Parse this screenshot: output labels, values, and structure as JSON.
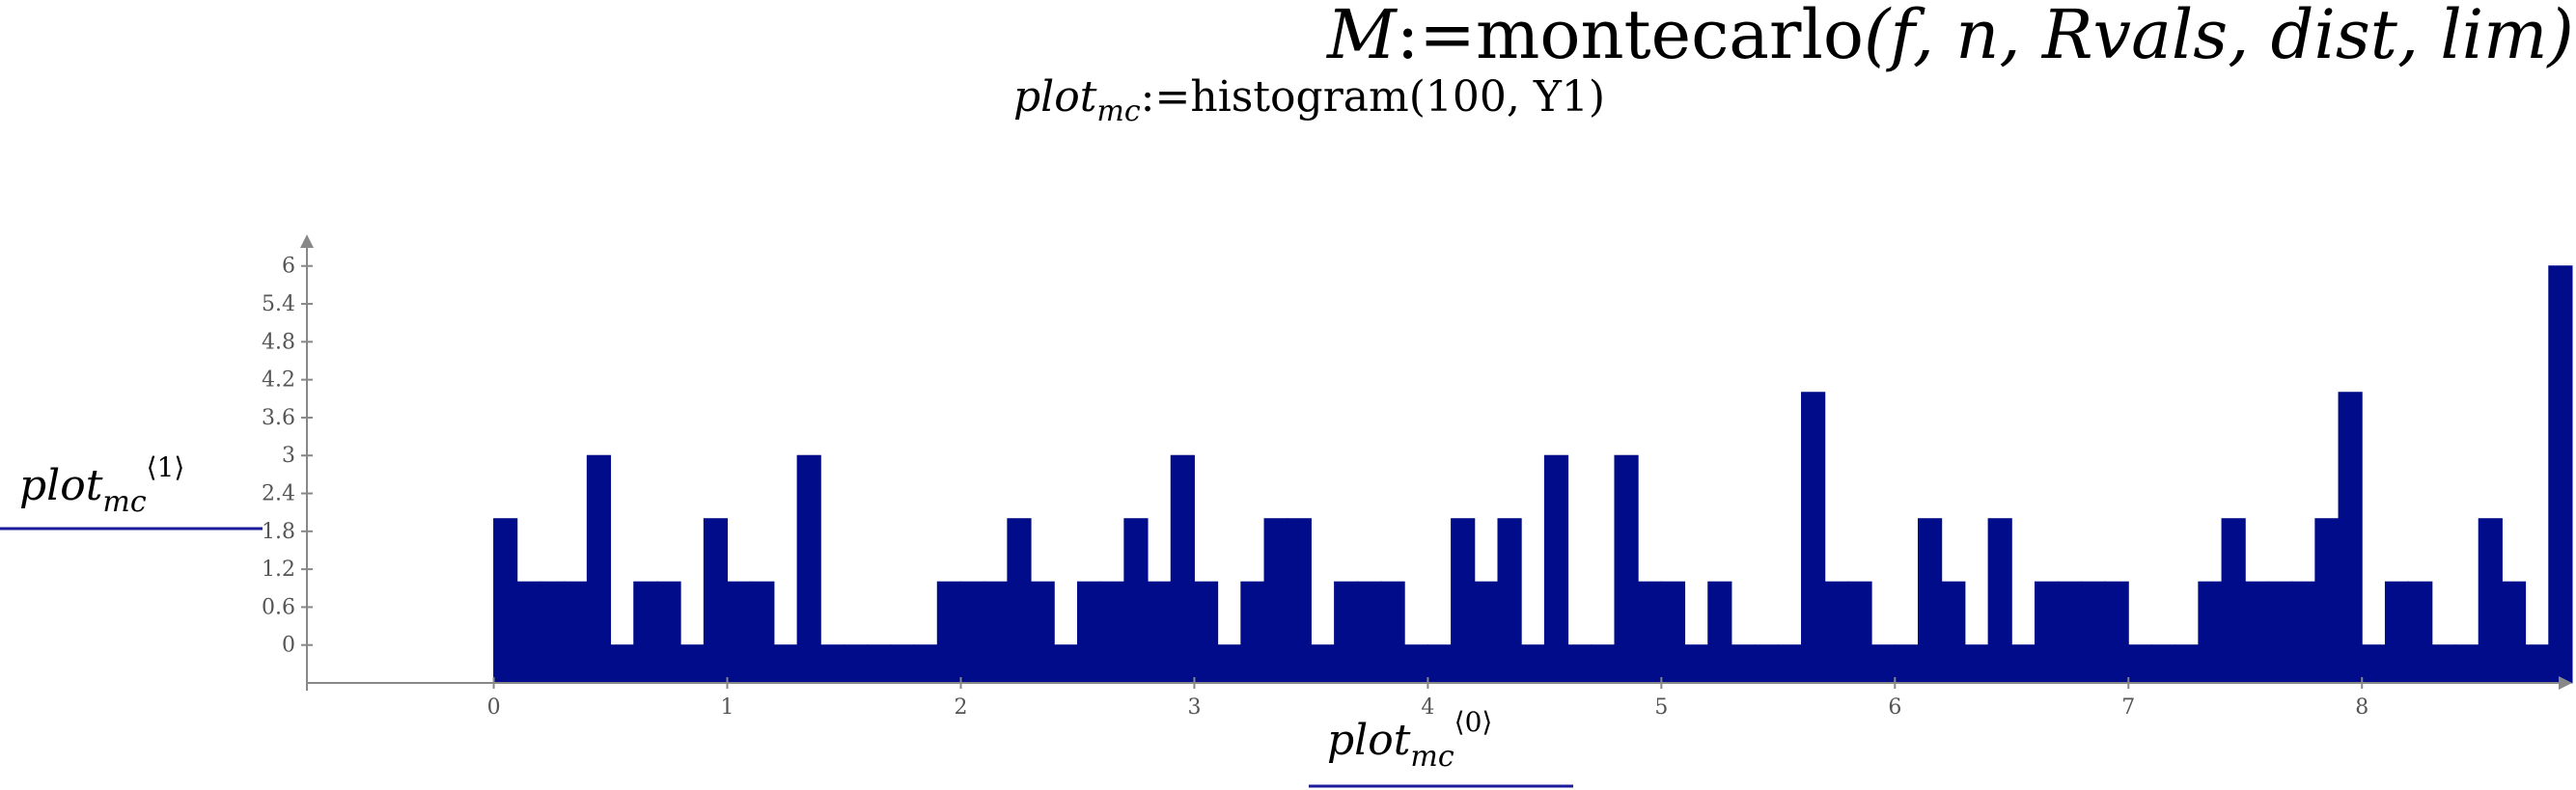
{
  "chart_data": {
    "type": "histogram",
    "equations": [
      {
        "lhs": "M",
        "op": ":=",
        "fn": "montecarlo",
        "args": "(f, n, Rvals, dist, lim)"
      },
      {
        "lhs": "plot",
        "lhs_sub": "mc",
        "op": ":=",
        "fn": "histogram",
        "args": "(100, Y1)"
      }
    ],
    "ylabel": {
      "base": "plot",
      "sub": "mc",
      "sup": "⟨1⟩"
    },
    "xlabel": {
      "base": "plot",
      "sub": "mc",
      "sup": "⟨0⟩"
    },
    "color": "#000c8a",
    "bins": [
      0,
      0.1,
      0.2,
      0.3,
      0.4,
      0.5,
      0.6,
      0.7,
      0.8,
      0.9,
      1,
      1.1,
      1.2,
      1.3,
      1.4,
      1.5,
      1.6,
      1.7,
      1.8,
      1.9,
      2,
      2.1,
      2.2,
      2.3,
      2.4,
      2.5,
      2.6,
      2.7,
      2.8,
      2.9,
      3,
      3.1,
      3.2,
      3.3,
      3.4,
      3.5,
      3.6,
      3.7,
      3.8,
      3.9,
      4,
      4.1,
      4.2,
      4.3,
      4.4,
      4.5,
      4.6,
      4.7,
      4.8,
      4.9,
      5,
      5.1,
      5.2,
      5.3,
      5.4,
      5.5,
      5.6,
      5.7,
      5.8,
      5.9,
      6,
      6.1,
      6.2,
      6.3,
      6.4,
      6.5,
      6.6,
      6.7,
      6.8,
      6.9,
      7,
      7.1,
      7.2,
      7.3,
      7.4,
      7.5,
      7.6,
      7.7,
      7.8,
      7.9,
      8,
      8.1,
      8.2,
      8.3,
      8.4,
      8.5,
      8.6,
      8.7,
      8.8,
      8.9
    ],
    "values": [
      2,
      1,
      1,
      1,
      3,
      0,
      1,
      1,
      0,
      2,
      1,
      1,
      0,
      3,
      0,
      0,
      0,
      0,
      0,
      1,
      1,
      1,
      2,
      1,
      0,
      1,
      1,
      2,
      1,
      3,
      1,
      0,
      1,
      2,
      2,
      0,
      1,
      1,
      1,
      0,
      0,
      2,
      1,
      2,
      0,
      3,
      0,
      0,
      3,
      1,
      1,
      0,
      1,
      0,
      0,
      0,
      4,
      1,
      1,
      0,
      0,
      2,
      1,
      0,
      2,
      0,
      1,
      1,
      1,
      1,
      0,
      0,
      0,
      1,
      2,
      1,
      1,
      1,
      2,
      4,
      0,
      1,
      1,
      0,
      0,
      2,
      1,
      0,
      6
    ],
    "xlim": [
      -0.8,
      8.9
    ],
    "ylim": [
      -0.6,
      6.5
    ],
    "xticks": [
      0,
      1,
      2,
      3,
      4,
      5,
      6,
      7,
      8
    ],
    "yticks": [
      0,
      0.6,
      1.2,
      1.8,
      2.4,
      3,
      3.6,
      4.2,
      4.8,
      5.4,
      6
    ]
  }
}
